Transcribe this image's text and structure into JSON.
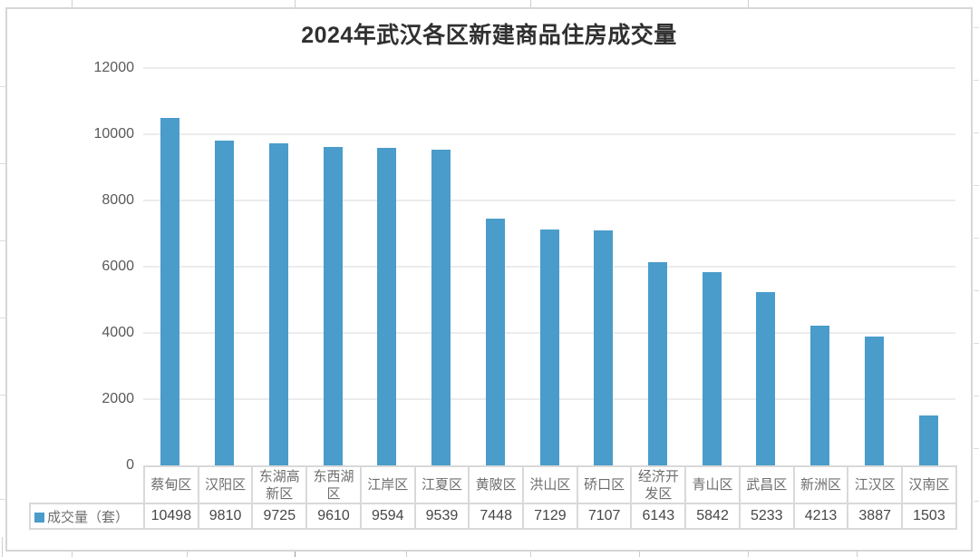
{
  "chart_data": {
    "type": "bar",
    "title": "2024年武汉各区新建商品住房成交量",
    "series_name": "成交量（套）",
    "categories": [
      "蔡甸区",
      "汉阳区",
      "东湖高新区",
      "东西湖区",
      "江岸区",
      "江夏区",
      "黄陂区",
      "洪山区",
      "硚口区",
      "经济开发区",
      "青山区",
      "武昌区",
      "新洲区",
      "江汉区",
      "汉南区"
    ],
    "values": [
      10498,
      9810,
      9725,
      9610,
      9594,
      9539,
      7448,
      7129,
      7107,
      6143,
      5842,
      5233,
      4213,
      3887,
      1503
    ],
    "ylim": [
      0,
      12000
    ],
    "yticks": [
      0,
      2000,
      4000,
      6000,
      8000,
      10000,
      12000
    ],
    "grid": true,
    "legend_position": "data-table-left",
    "bar_color": "#4a9cca",
    "data_table_shown": true
  }
}
